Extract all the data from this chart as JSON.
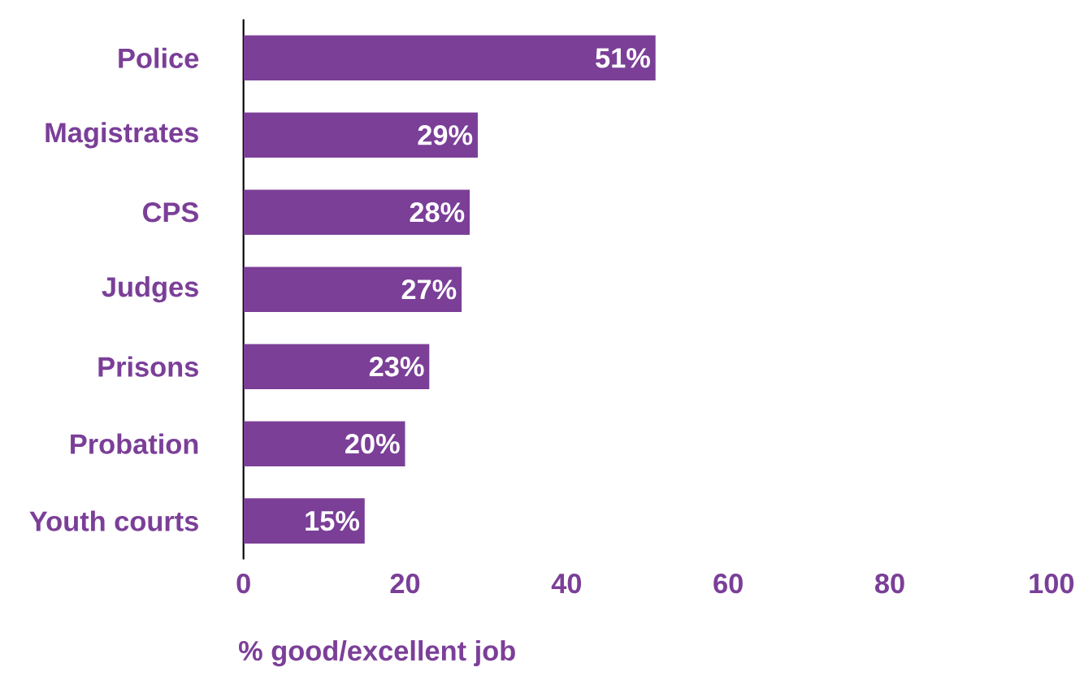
{
  "chart_data": {
    "type": "bar",
    "orientation": "horizontal",
    "categories": [
      "Police",
      "Magistrates",
      "CPS",
      "Judges",
      "Prisons",
      "Probation",
      "Youth courts"
    ],
    "values": [
      51,
      29,
      28,
      27,
      23,
      20,
      15
    ],
    "value_labels": [
      "51%",
      "29%",
      "28%",
      "27%",
      "23%",
      "20%",
      "15%"
    ],
    "color": "#7b3f98",
    "xlim": [
      0,
      100
    ],
    "xticks": [
      0,
      20,
      40,
      60,
      80,
      100
    ],
    "xlabel": "% good/excellent job"
  }
}
